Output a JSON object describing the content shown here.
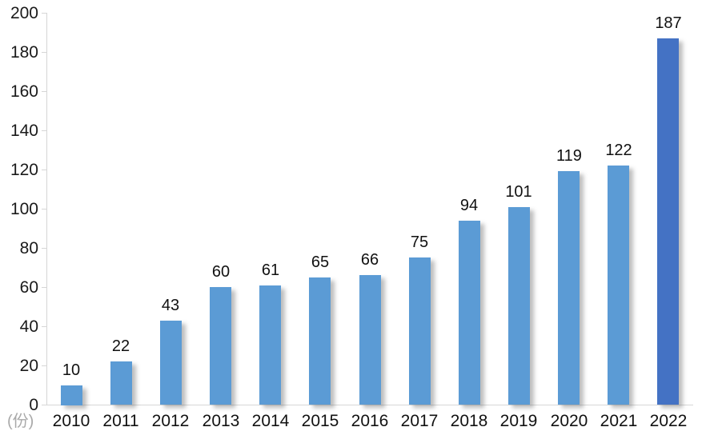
{
  "chart_data": {
    "type": "bar",
    "title": "",
    "xlabel": "",
    "ylabel": "",
    "unit_label": "(份)",
    "categories": [
      "2010",
      "2011",
      "2012",
      "2013",
      "2014",
      "2015",
      "2016",
      "2017",
      "2018",
      "2019",
      "2020",
      "2021",
      "2022"
    ],
    "values": [
      10,
      22,
      43,
      60,
      61,
      65,
      66,
      75,
      94,
      101,
      119,
      122,
      187
    ],
    "data_labels_shown": true,
    "ylim": [
      0,
      200
    ],
    "ytick_step": 20,
    "yticks": [
      0,
      20,
      40,
      60,
      80,
      100,
      120,
      140,
      160,
      180,
      200
    ],
    "grid": false,
    "legend": "none",
    "colors": {
      "bar_default": "#5b9bd5",
      "bar_highlight": "#4472c4",
      "highlight_category": "2022",
      "axis_line": "#d6d6d6",
      "text": "#111111",
      "unit_label_text": "#a9a9a9",
      "background": "#ffffff"
    }
  }
}
